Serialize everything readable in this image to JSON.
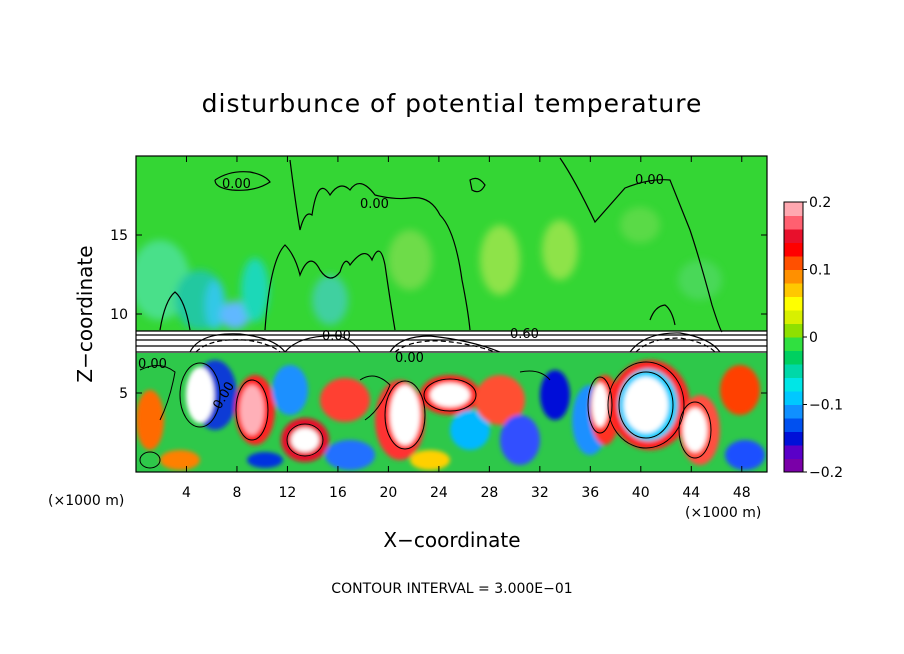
{
  "chart_data": {
    "type": "heatmap",
    "title": "disturbunce of potential temperature",
    "xlabel": "X−coordinate",
    "ylabel": "Z−coordinate",
    "x_unit_left": "(×1000 m)",
    "x_unit_right": "(×1000 m)",
    "footer": "CONTOUR INTERVAL = 3.000E−01",
    "xlim": [
      0,
      50
    ],
    "ylim": [
      0,
      20
    ],
    "x_ticks": [
      4,
      8,
      12,
      16,
      20,
      24,
      28,
      32,
      36,
      40,
      44,
      48
    ],
    "y_ticks": [
      5,
      10,
      15
    ],
    "colorbar": {
      "range": [
        -0.2,
        0.2
      ],
      "tick_values": [
        -0.2,
        -0.1,
        0,
        0.1,
        0.2
      ],
      "tick_labels": [
        "−0.2",
        "−0.1",
        "0",
        "0.1",
        "0.2"
      ],
      "colors": [
        "#7a00a8",
        "#5a00c8",
        "#0010d8",
        "#0050f0",
        "#1090ff",
        "#00c8ff",
        "#00e6e6",
        "#00d8a8",
        "#00d060",
        "#30e040",
        "#8ee000",
        "#d8f000",
        "#ffff00",
        "#ffc800",
        "#ff9000",
        "#ff5000",
        "#ff0000",
        "#e8102c",
        "#ff6070",
        "#ffa8b0"
      ]
    },
    "contour_labels": [
      "0.00",
      "0.00",
      "0.00",
      "0.60",
      "0.00",
      "0.00",
      "0.00",
      "0.00"
    ],
    "grid": false
  }
}
